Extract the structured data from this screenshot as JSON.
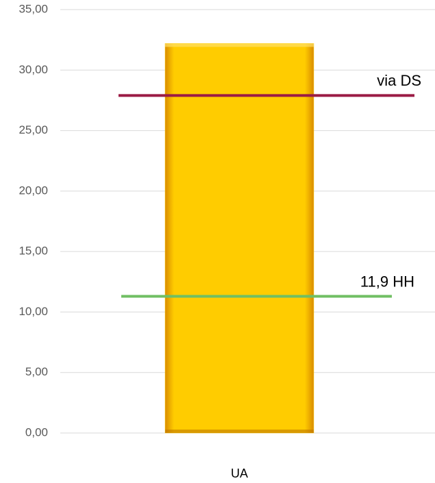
{
  "chart_data": {
    "type": "bar",
    "categories": [
      "UA"
    ],
    "values": [
      32.2
    ],
    "color": "#ffcc00",
    "ylim": [
      0,
      35
    ],
    "yticks": [
      {
        "value": 0,
        "label": "0,00"
      },
      {
        "value": 5,
        "label": "5,00"
      },
      {
        "value": 10,
        "label": "10,00"
      },
      {
        "value": 15,
        "label": "15,00"
      },
      {
        "value": 20,
        "label": "20,00"
      },
      {
        "value": 25,
        "label": "25,00"
      },
      {
        "value": 30,
        "label": "30,00"
      },
      {
        "value": 35,
        "label": "35,00"
      }
    ],
    "grid": true,
    "annotations": [
      {
        "text": "via DS",
        "value": 27.9,
        "color": "#9b1b45"
      },
      {
        "text": "11,9 HH",
        "value": 11.3,
        "color": "#70bf63"
      }
    ]
  }
}
